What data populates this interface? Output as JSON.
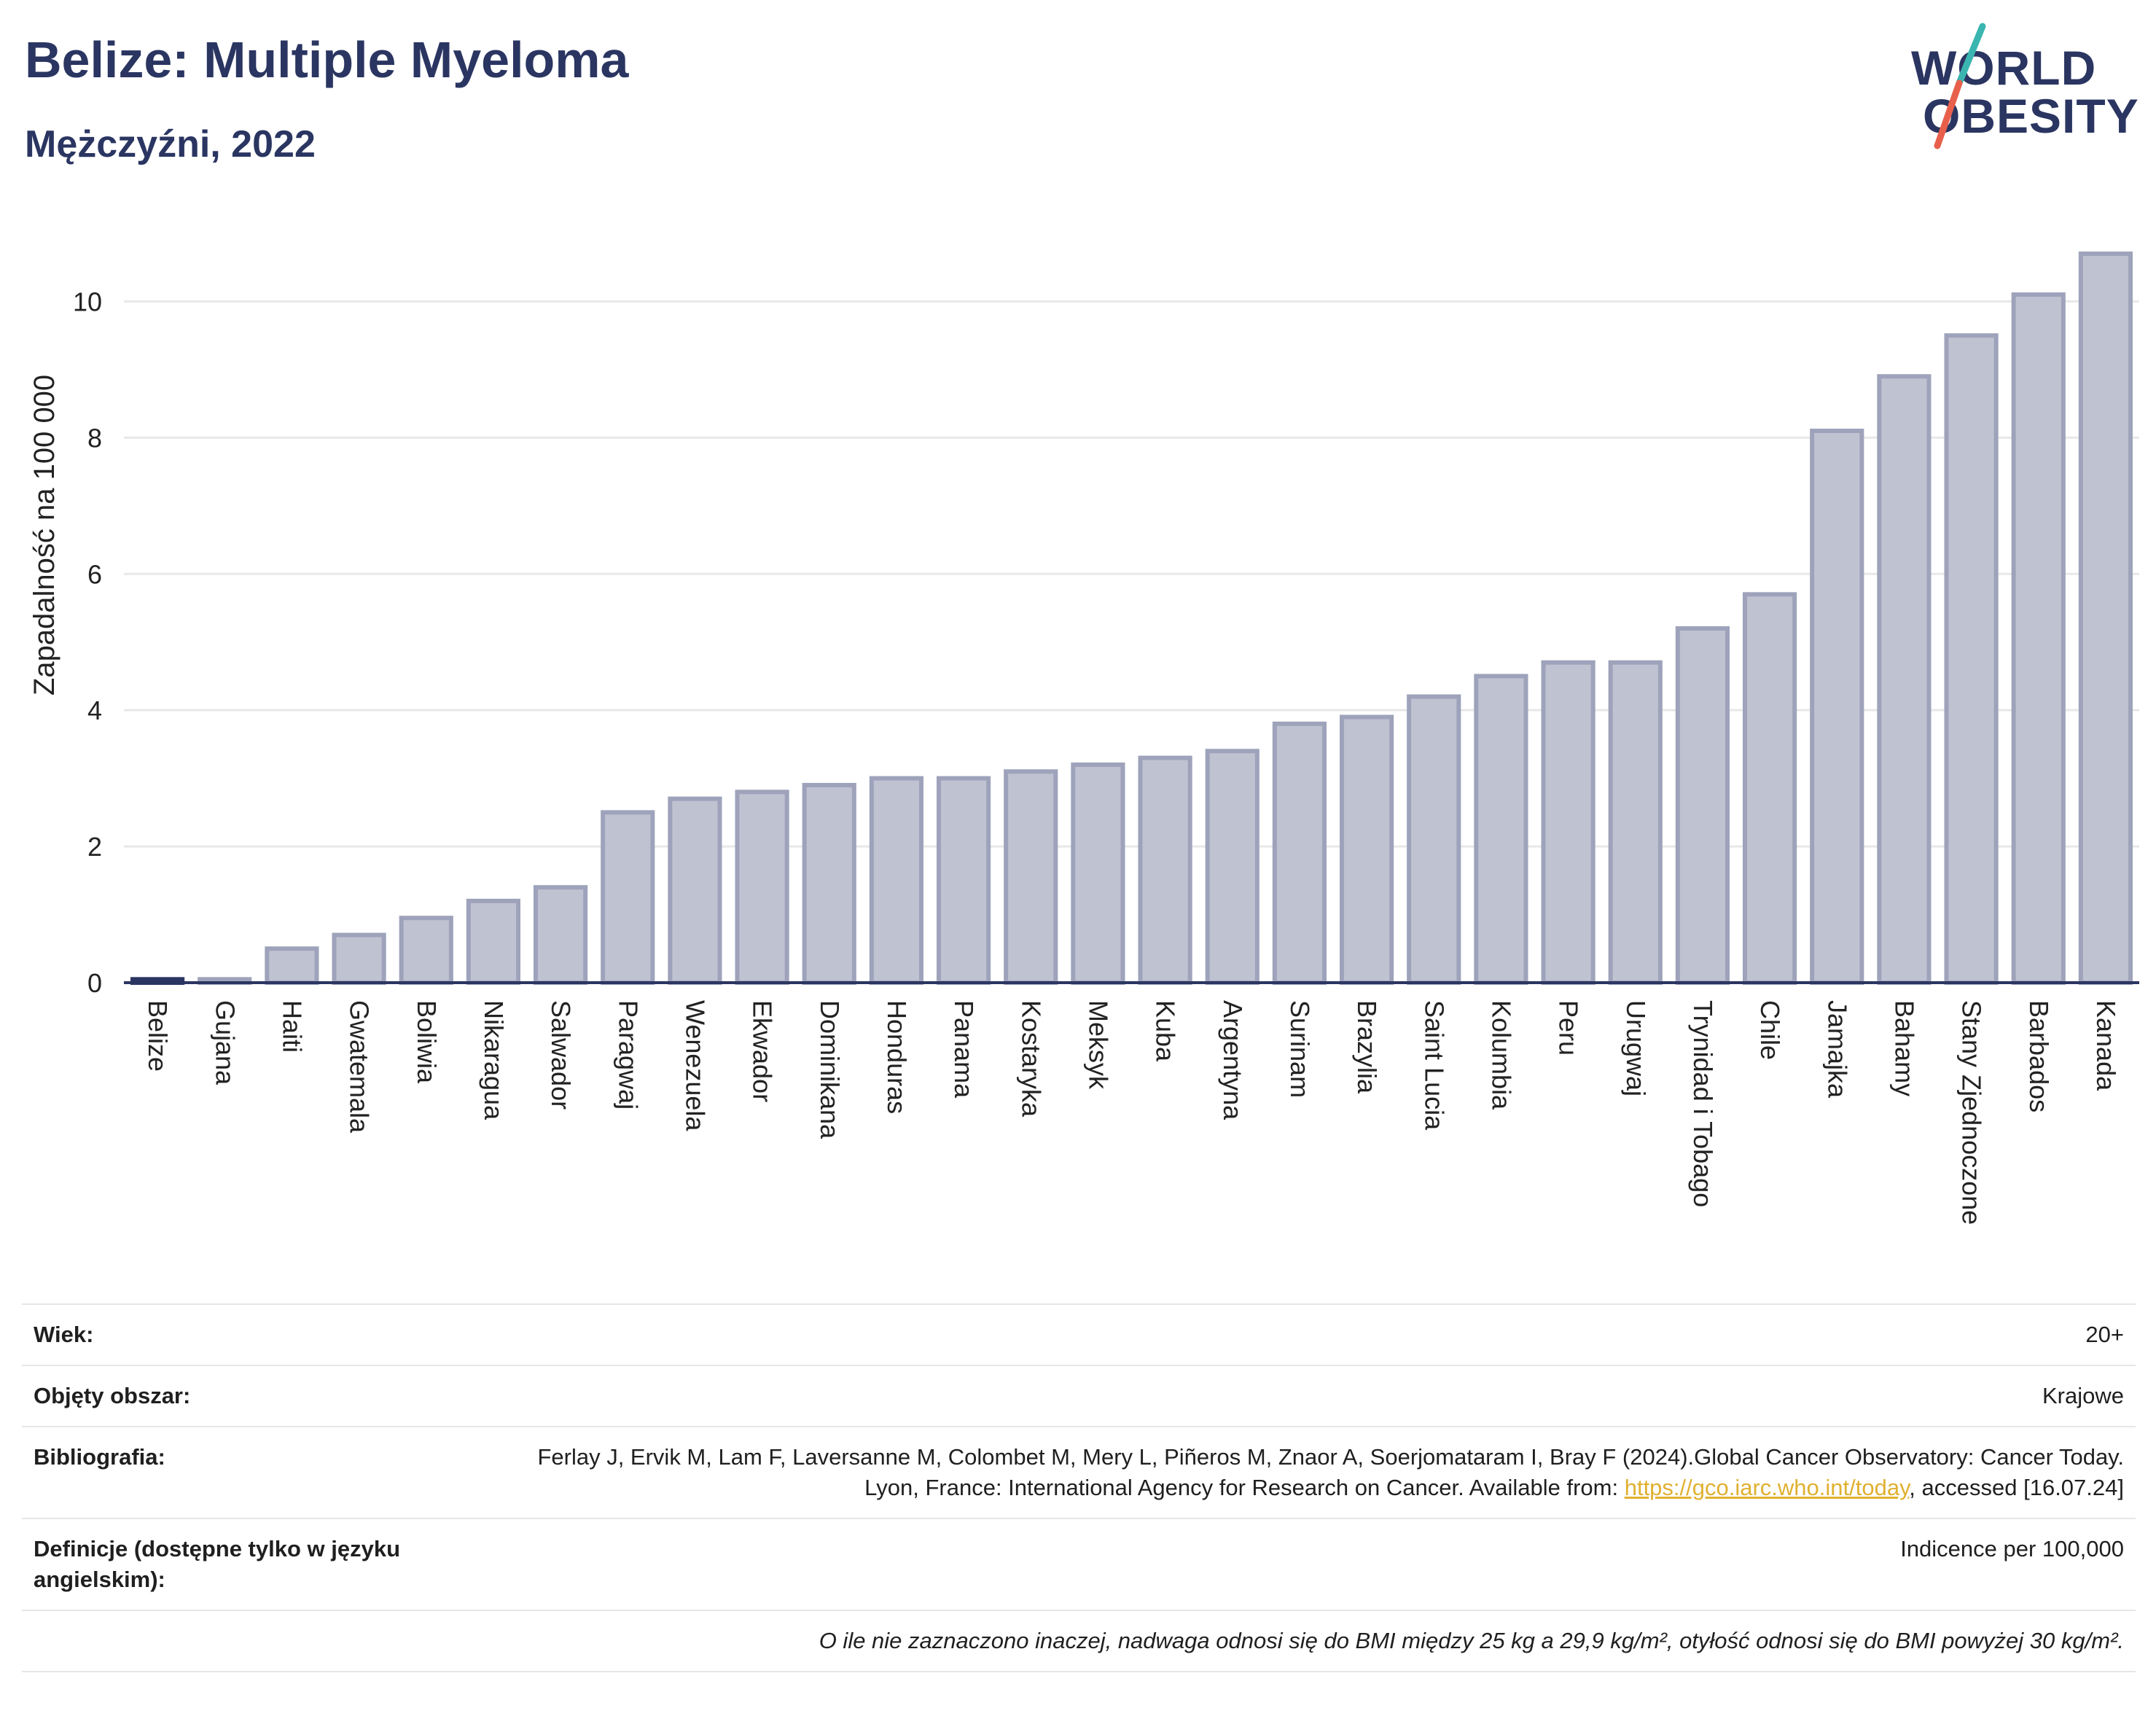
{
  "header": {
    "title": "Belize: Multiple Myeloma",
    "subtitle": "Mężczyźni, 2022"
  },
  "logo": {
    "line1": "WORLD",
    "line2": "OBESITY"
  },
  "colors": {
    "bar": "#bfc2d1",
    "bar_stroke": "#9ea3bb",
    "highlight": "#2a3561",
    "accent_teal": "#3bb5b0",
    "accent_red": "#e8604c"
  },
  "chart_data": {
    "type": "bar",
    "ylabel": "Zapadalność na 100 000",
    "ylim": [
      0,
      11
    ],
    "yticks": [
      0,
      2,
      4,
      6,
      8,
      10
    ],
    "grid": true,
    "highlight": "Belize",
    "categories": [
      "Belize",
      "Gujana",
      "Haiti",
      "Gwatemala",
      "Boliwia",
      "Nikaragua",
      "Salwador",
      "Paragwaj",
      "Wenezuela",
      "Ekwador",
      "Dominikana",
      "Honduras",
      "Panama",
      "Kostaryka",
      "Meksyk",
      "Kuba",
      "Argentyna",
      "Surinam",
      "Brazylia",
      "Saint Lucia",
      "Kolumbia",
      "Peru",
      "Urugwaj",
      "Trynidad i Tobago",
      "Chile",
      "Jamajka",
      "Bahamy",
      "Stany Zjednoczone",
      "Barbados",
      "Kanada"
    ],
    "values": [
      0.05,
      0.05,
      0.5,
      0.7,
      0.95,
      1.2,
      1.4,
      2.5,
      2.7,
      2.8,
      2.9,
      3.0,
      3.0,
      3.1,
      3.2,
      3.3,
      3.4,
      3.8,
      3.9,
      4.2,
      4.5,
      4.7,
      4.7,
      5.2,
      5.7,
      8.1,
      8.9,
      9.5,
      10.1,
      10.7
    ]
  },
  "info": {
    "age_label": "Wiek:",
    "age_value": "20+",
    "coverage_label": "Objęty obszar:",
    "coverage_value": "Krajowe",
    "bib_label": "Bibliografia:",
    "bib_text": "Ferlay J, Ervik M, Lam F, Laversanne M, Colombet M, Mery L, Piñeros M, Znaor A, Soerjomataram I, Bray F (2024).Global Cancer Observatory: Cancer Today. Lyon, France: International Agency for Research on Cancer. Available from:",
    "bib_link": "https://gco.iarc.who.int/today",
    "bib_tail": ", accessed [16.07.24]",
    "def_label": "Definicje (dostępne tylko w języku angielskim):",
    "def_value": "Indicence per 100,000",
    "note": "O ile nie zaznaczono inaczej, nadwaga odnosi się do BMI między 25 kg a 29,9 kg/m², otyłość odnosi się do BMI powyżej 30 kg/m²."
  }
}
